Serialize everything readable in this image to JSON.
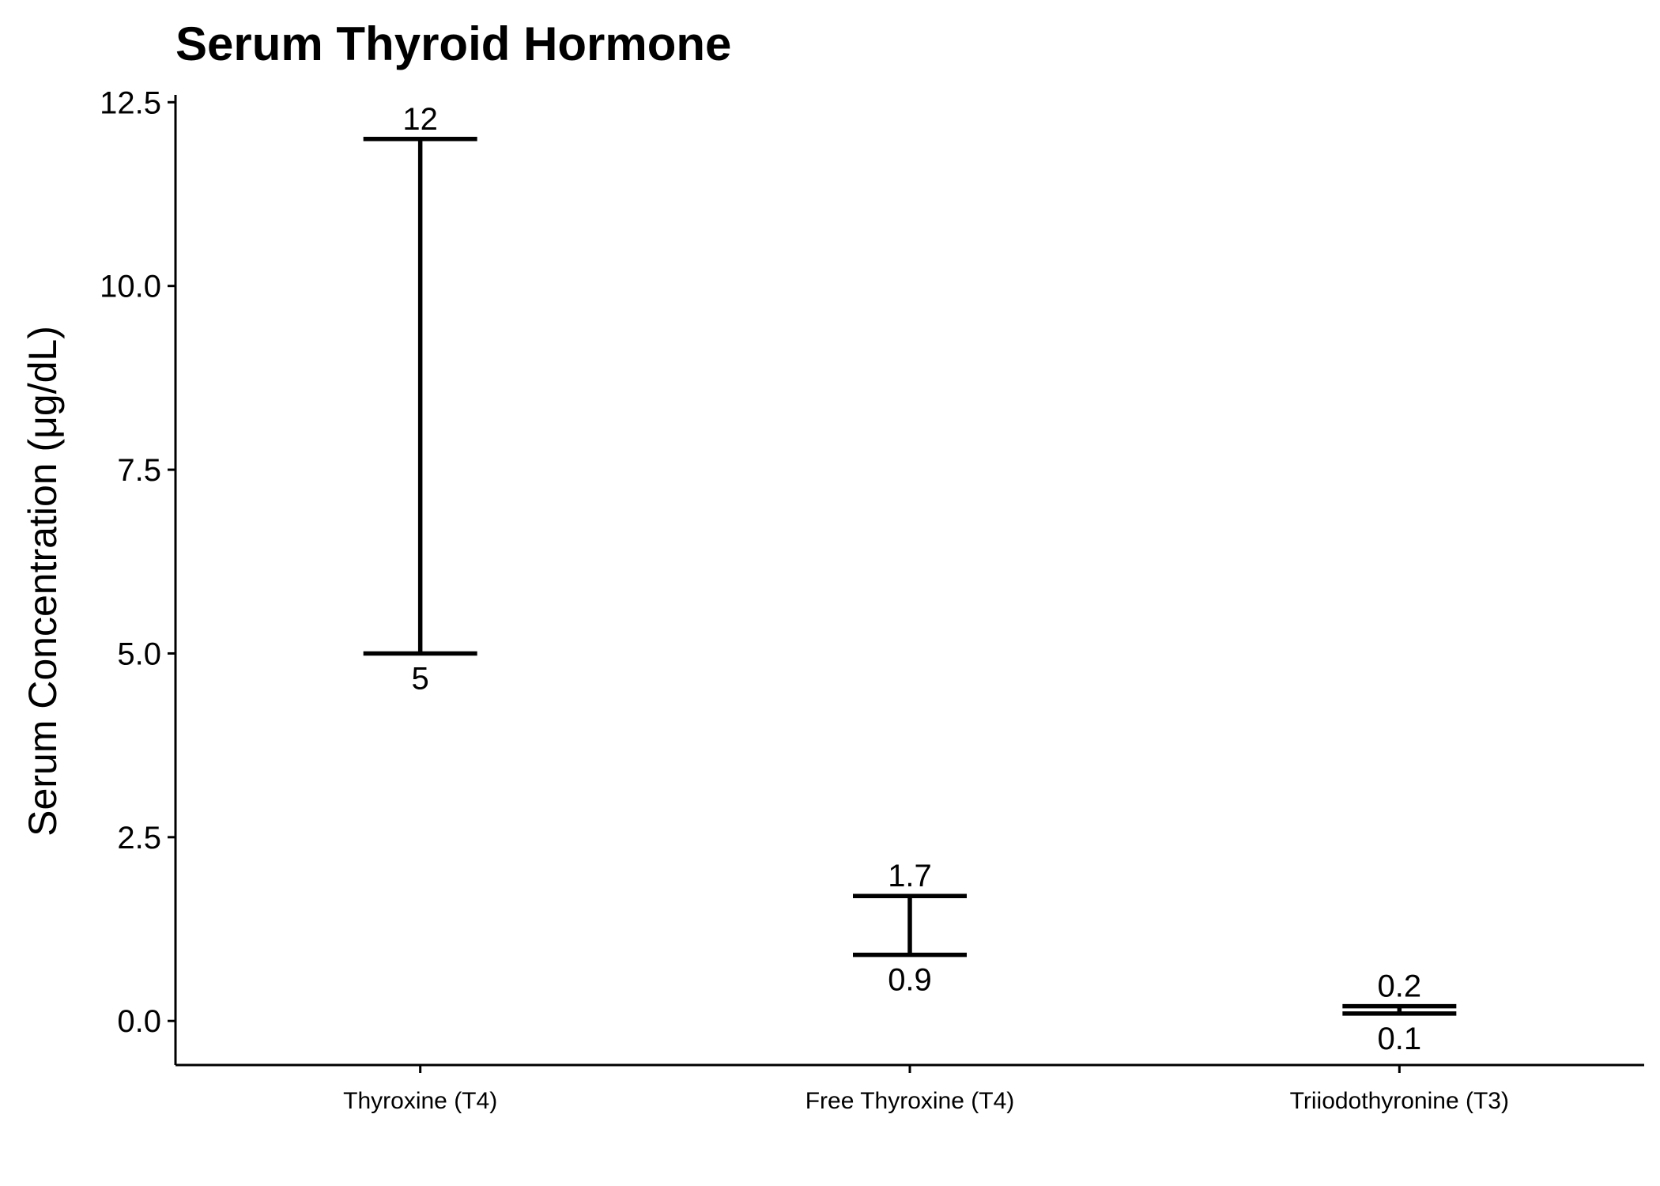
{
  "chart_data": {
    "type": "errorbar",
    "title": "Serum Thyroid Hormone",
    "xlabel": "",
    "ylabel": "Serum Concentration (μg/dL)",
    "categories": [
      "Thyroxine (T4)",
      "Free Thyroxine (T4)",
      "Triiodothyronine (T3)"
    ],
    "lower": [
      5,
      0.9,
      0.1
    ],
    "upper": [
      12,
      1.7,
      0.2
    ],
    "lower_labels": [
      "5",
      "0.9",
      "0.1"
    ],
    "upper_labels": [
      "12",
      "1.7",
      "0.2"
    ],
    "ylim": [
      -0.6,
      12.6
    ],
    "yticks": [
      0,
      2.5,
      5,
      7.5,
      10,
      12.5
    ],
    "ytick_labels": [
      "0.0",
      "2.5",
      "5.0",
      "7.5",
      "10.0",
      "12.5"
    ],
    "grid": false,
    "legend": "none",
    "colors": {
      "line": "#000000",
      "background": "#ffffff"
    }
  }
}
